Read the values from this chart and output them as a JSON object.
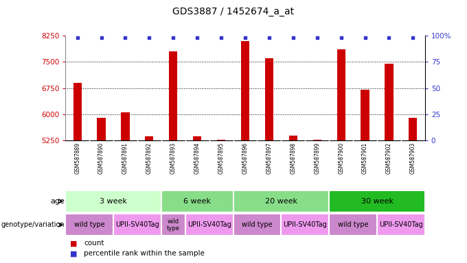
{
  "title": "GDS3887 / 1452674_a_at",
  "samples": [
    "GSM587889",
    "GSM587890",
    "GSM587891",
    "GSM587892",
    "GSM587893",
    "GSM587894",
    "GSM587895",
    "GSM587896",
    "GSM587897",
    "GSM587898",
    "GSM587899",
    "GSM587900",
    "GSM587901",
    "GSM587902",
    "GSM587903"
  ],
  "counts": [
    6900,
    5900,
    6050,
    5380,
    7800,
    5380,
    5270,
    8100,
    7600,
    5390,
    5280,
    7850,
    6700,
    7450,
    5900
  ],
  "percentile_ranks": [
    98,
    98,
    98,
    98,
    98,
    98,
    98,
    98,
    98,
    98,
    98,
    98,
    98,
    98,
    98
  ],
  "ylim_left": [
    5250,
    8250
  ],
  "ylim_right": [
    0,
    100
  ],
  "yticks_left": [
    5250,
    6000,
    6750,
    7500,
    8250
  ],
  "yticks_right": [
    0,
    25,
    50,
    75,
    100
  ],
  "bar_color": "#cc0000",
  "dot_color": "#3333cc",
  "background_color": "#ffffff",
  "grid_color": "#000000",
  "age_groups": [
    {
      "label": "3 week",
      "start": 0,
      "end": 4,
      "color": "#ccffcc"
    },
    {
      "label": "6 week",
      "start": 4,
      "end": 7,
      "color": "#88dd88"
    },
    {
      "label": "20 week",
      "start": 7,
      "end": 11,
      "color": "#88dd88"
    },
    {
      "label": "30 week",
      "start": 11,
      "end": 15,
      "color": "#22bb22"
    }
  ],
  "genotype_groups": [
    {
      "label": "wild type",
      "start": 0,
      "end": 2,
      "color": "#cc88cc"
    },
    {
      "label": "UPII-SV40Tag",
      "start": 2,
      "end": 4,
      "color": "#ee99ee"
    },
    {
      "label": "wild\ntype",
      "start": 4,
      "end": 5,
      "color": "#cc88cc"
    },
    {
      "label": "UPII-SV40Tag",
      "start": 5,
      "end": 7,
      "color": "#ee99ee"
    },
    {
      "label": "wild type",
      "start": 7,
      "end": 9,
      "color": "#cc88cc"
    },
    {
      "label": "UPII-SV40Tag",
      "start": 9,
      "end": 11,
      "color": "#ee99ee"
    },
    {
      "label": "wild type",
      "start": 11,
      "end": 13,
      "color": "#cc88cc"
    },
    {
      "label": "UPII-SV40Tag",
      "start": 13,
      "end": 15,
      "color": "#ee99ee"
    }
  ],
  "legend_count_color": "#cc0000",
  "legend_dot_color": "#3333cc",
  "axis_color_left": "#cc0000",
  "axis_color_right": "#3333cc",
  "sample_bg_color": "#d8d8d8",
  "sample_border_color": "#ffffff"
}
